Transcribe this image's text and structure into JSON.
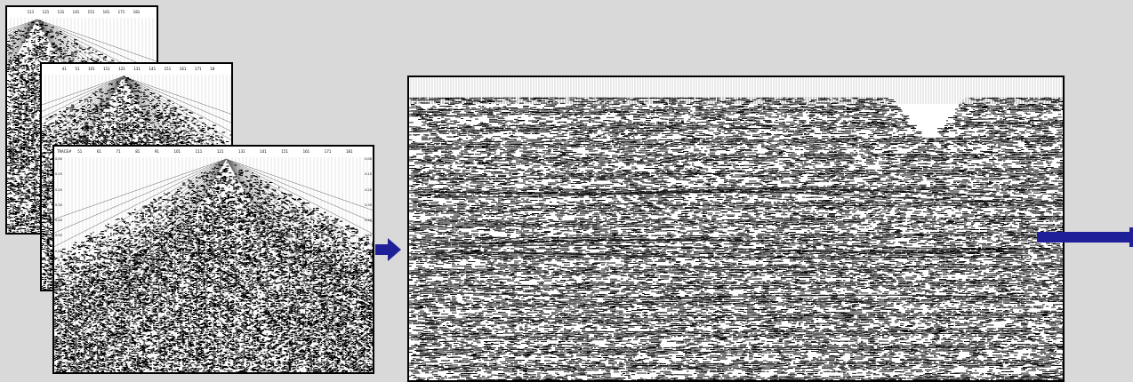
{
  "shot_gathers": [
    {
      "id": "shot-gather-back",
      "trace_labels": [
        "111",
        "121",
        "131",
        "141",
        "151",
        "161",
        "171",
        "181"
      ]
    },
    {
      "id": "shot-gather-middle",
      "trace_labels": [
        "41",
        "51",
        "101",
        "111",
        "121",
        "131",
        "141",
        "151",
        "161",
        "171",
        "18"
      ]
    },
    {
      "id": "shot-gather-front",
      "header_label": "TRACE#",
      "trace_labels": [
        "51",
        "61",
        "71",
        "81",
        "91",
        "101",
        "111",
        "121",
        "131",
        "141",
        "151",
        "161",
        "171",
        "181"
      ],
      "time_labels_left": [
        "0.00",
        "0.10",
        "0.20",
        "0.30",
        "0.40",
        "0.50",
        "0.60",
        "0.70",
        "0.80",
        "0.90",
        "1.00",
        "1.10",
        "1.20",
        "1.30"
      ],
      "time_labels_right": [
        "0.00",
        "0.10",
        "0.20",
        "0.30",
        "0.40",
        "0.50",
        "0.60",
        "0.70",
        "0.80",
        "0.90",
        "1.00",
        "1.10",
        "1.20",
        "1.30"
      ]
    }
  ],
  "stacked_section": {
    "id": "stacked-seismic-section"
  },
  "colors": {
    "background": "#d9d9d9",
    "arrow": "#1f1f99",
    "ink": "#000000",
    "paper": "#ffffff"
  }
}
